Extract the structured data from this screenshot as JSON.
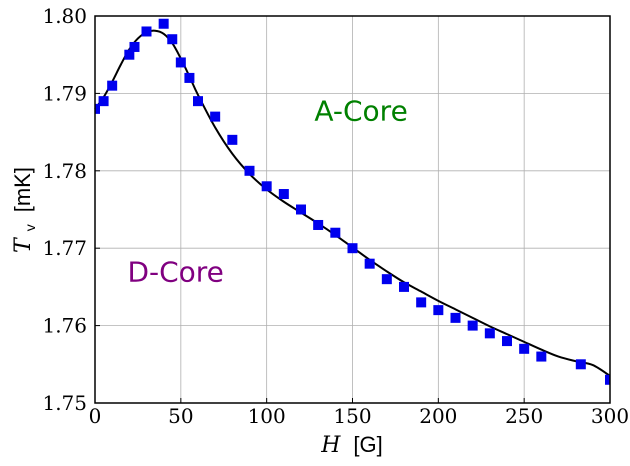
{
  "chart_data": {
    "type": "scatter",
    "xlabel_var": "H",
    "xlabel_unit": "[G]",
    "ylabel_var": "T",
    "ylabel_sub": "v",
    "ylabel_unit": "[mK]",
    "xlim": [
      0,
      300
    ],
    "ylim": [
      1.75,
      1.8
    ],
    "xticks": [
      "0",
      "50",
      "100",
      "150",
      "200",
      "250",
      "300"
    ],
    "yticks": [
      "1.75",
      "1.76",
      "1.77",
      "1.78",
      "1.79",
      "1.80"
    ],
    "grid": true,
    "series": [
      {
        "marker": "square",
        "color": "#0000ee",
        "x": [
          0,
          5,
          10,
          20,
          23,
          30,
          40,
          45,
          50,
          55,
          60,
          70,
          80,
          90,
          100,
          110,
          120,
          130,
          140,
          150,
          160,
          170,
          180,
          190,
          200,
          210,
          220,
          230,
          240,
          250,
          260,
          283,
          300
        ],
        "y": [
          1.788,
          1.789,
          1.791,
          1.795,
          1.796,
          1.798,
          1.799,
          1.797,
          1.794,
          1.792,
          1.789,
          1.787,
          1.784,
          1.78,
          1.778,
          1.777,
          1.775,
          1.773,
          1.772,
          1.77,
          1.768,
          1.766,
          1.765,
          1.763,
          1.762,
          1.761,
          1.76,
          1.759,
          1.758,
          1.757,
          1.756,
          1.755,
          1.753
        ]
      }
    ],
    "fit_curve": {
      "color": "#000000",
      "x": [
        0,
        5,
        10,
        15,
        20,
        25,
        30,
        35,
        40,
        45,
        50,
        55,
        60,
        70,
        80,
        90,
        100,
        110,
        120,
        130,
        140,
        150,
        160,
        170,
        180,
        190,
        200,
        210,
        220,
        230,
        240,
        250,
        260,
        270,
        280,
        290,
        300
      ],
      "y": [
        1.788,
        1.7895,
        1.7915,
        1.7937,
        1.7957,
        1.7971,
        1.7979,
        1.7981,
        1.7977,
        1.7965,
        1.7945,
        1.7922,
        1.7898,
        1.7856,
        1.7822,
        1.7796,
        1.7776,
        1.776,
        1.7746,
        1.7732,
        1.7717,
        1.7701,
        1.7685,
        1.767,
        1.7656,
        1.7644,
        1.7632,
        1.7621,
        1.761,
        1.7599,
        1.7589,
        1.7579,
        1.7569,
        1.756,
        1.7554,
        1.7549,
        1.7535
      ]
    },
    "annotations": [
      {
        "text": "A-Core",
        "x": 155,
        "y": 1.7865,
        "color": "#008000"
      },
      {
        "text": "D-Core",
        "x": 47,
        "y": 1.7657,
        "color": "#800080"
      }
    ]
  }
}
